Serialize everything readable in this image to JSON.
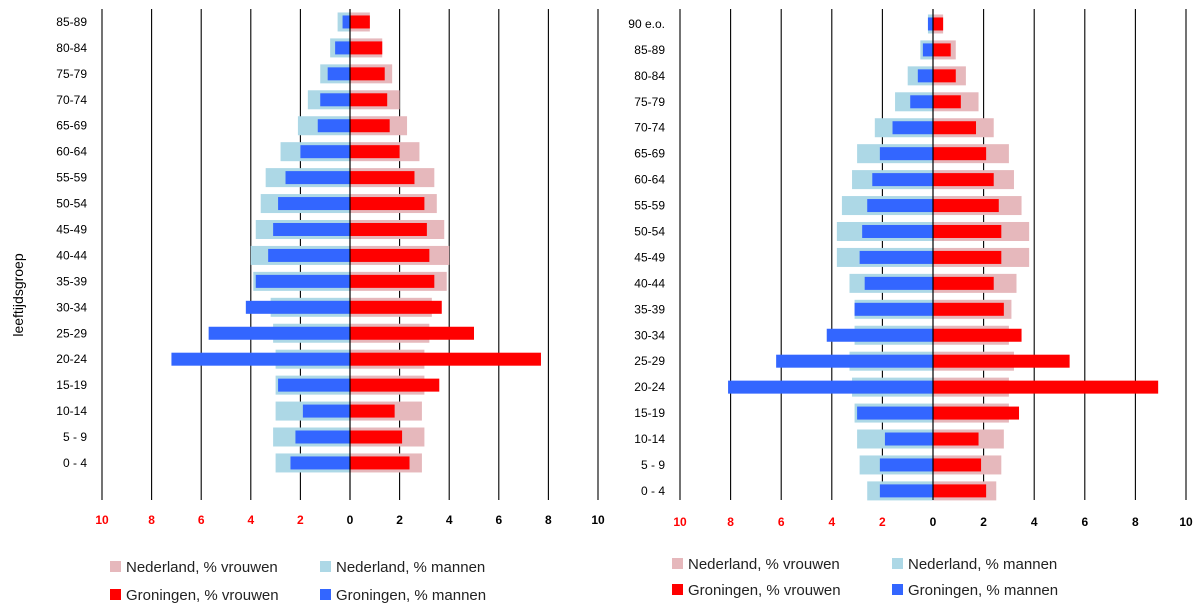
{
  "colors": {
    "nl_women": "#e6b8bc",
    "nl_men": "#add8e6",
    "gr_women": "#ff0000",
    "gr_men": "#3366ff",
    "axis_negative": "#ff0000",
    "axis_positive": "#000000",
    "gridline": "#000000"
  },
  "chart_data": [
    {
      "type": "bar",
      "orientation": "horizontal",
      "title": "",
      "ylabel": "leeftijdsgroep",
      "xlim": [
        -10,
        10
      ],
      "x_ticks": [
        "10",
        "8",
        "6",
        "4",
        "2",
        "0",
        "2",
        "4",
        "6",
        "8",
        "10"
      ],
      "grid": "vertical at every 2 units",
      "legend_position": "bottom",
      "categories": [
        "85-89",
        "80-84",
        "75-79",
        "70-74",
        "65-69",
        "60-64",
        "55-59",
        "50-54",
        "45-49",
        "40-44",
        "35-39",
        "30-34",
        "25-29",
        "20-24",
        "15-19",
        "10-14",
        "5 - 9",
        "0 - 4"
      ],
      "series": [
        {
          "name": "Nederland, % vrouwen",
          "side": "right",
          "values": [
            0.8,
            1.3,
            1.7,
            2.0,
            2.3,
            2.8,
            3.4,
            3.5,
            3.8,
            4.0,
            3.9,
            3.3,
            3.2,
            3.0,
            3.0,
            2.9,
            3.0,
            2.9
          ]
        },
        {
          "name": "Nederland, % mannen",
          "side": "left",
          "values": [
            0.5,
            0.8,
            1.2,
            1.7,
            2.1,
            2.8,
            3.4,
            3.6,
            3.8,
            4.0,
            3.9,
            3.2,
            3.1,
            3.0,
            3.0,
            3.0,
            3.1,
            3.0
          ]
        },
        {
          "name": "Groningen, % vrouwen",
          "side": "right",
          "values": [
            0.8,
            1.3,
            1.4,
            1.5,
            1.6,
            2.0,
            2.6,
            3.0,
            3.1,
            3.2,
            3.4,
            3.7,
            5.0,
            7.7,
            3.6,
            1.8,
            2.1,
            2.4
          ]
        },
        {
          "name": "Groningen, % mannen",
          "side": "left",
          "values": [
            0.3,
            0.6,
            0.9,
            1.2,
            1.3,
            2.0,
            2.6,
            2.9,
            3.1,
            3.3,
            3.8,
            4.2,
            5.7,
            7.2,
            2.9,
            1.9,
            2.2,
            2.4
          ]
        }
      ]
    },
    {
      "type": "bar",
      "orientation": "horizontal",
      "title": "",
      "ylabel": "",
      "xlim": [
        -10,
        10
      ],
      "x_ticks": [
        "10",
        "8",
        "6",
        "4",
        "2",
        "0",
        "2",
        "4",
        "6",
        "8",
        "10"
      ],
      "grid": "vertical at every 2 units",
      "legend_position": "bottom",
      "categories": [
        "90 e.o.",
        "85-89",
        "80-84",
        "75-79",
        "70-74",
        "65-69",
        "60-64",
        "55-59",
        "50-54",
        "45-49",
        "40-44",
        "35-39",
        "30-34",
        "25-29",
        "20-24",
        "15-19",
        "10-14",
        "5 - 9",
        "0 - 4"
      ],
      "series": [
        {
          "name": "Nederland, % vrouwen",
          "side": "right",
          "values": [
            0.4,
            0.9,
            1.3,
            1.8,
            2.4,
            3.0,
            3.2,
            3.5,
            3.8,
            3.8,
            3.3,
            3.1,
            3.0,
            3.2,
            3.0,
            3.0,
            2.8,
            2.7,
            2.5
          ]
        },
        {
          "name": "Nederland, % mannen",
          "side": "left",
          "values": [
            0.2,
            0.5,
            1.0,
            1.5,
            2.3,
            3.0,
            3.2,
            3.6,
            3.8,
            3.8,
            3.3,
            3.1,
            3.1,
            3.3,
            3.2,
            3.1,
            3.0,
            2.9,
            2.6
          ]
        },
        {
          "name": "Groningen, % vrouwen",
          "side": "right",
          "values": [
            0.4,
            0.7,
            0.9,
            1.1,
            1.7,
            2.1,
            2.4,
            2.6,
            2.7,
            2.7,
            2.4,
            2.8,
            3.5,
            5.4,
            8.9,
            3.4,
            1.8,
            1.9,
            2.1
          ]
        },
        {
          "name": "Groningen, % mannen",
          "side": "left",
          "values": [
            0.2,
            0.4,
            0.6,
            0.9,
            1.6,
            2.1,
            2.4,
            2.6,
            2.8,
            2.9,
            2.7,
            3.1,
            4.2,
            6.2,
            8.1,
            3.0,
            1.9,
            2.1,
            2.1
          ]
        }
      ]
    }
  ]
}
